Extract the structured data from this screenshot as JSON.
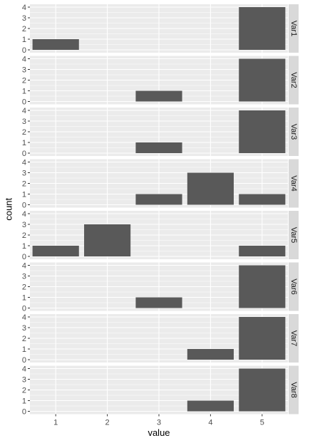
{
  "chart_data": {
    "type": "bar",
    "layout": "faceted-rows",
    "xlabel": "value",
    "ylabel": "count",
    "x_ticks": [
      "1",
      "2",
      "3",
      "4",
      "5"
    ],
    "y_ticks": [
      "0",
      "1",
      "2",
      "3",
      "4"
    ],
    "xlim": [
      0.5,
      5.5
    ],
    "ylim": [
      0,
      4
    ],
    "grid": true,
    "facet_strip_position": "right",
    "colors": {
      "bar": "#595959",
      "panel_background": "#ebebeb",
      "gridline": "#ffffff",
      "strip_background": "#d9d9d9"
    },
    "facets": [
      {
        "label": "Var1",
        "bars": [
          {
            "x": 1,
            "count": 1
          },
          {
            "x": 5,
            "count": 4
          }
        ]
      },
      {
        "label": "Var2",
        "bars": [
          {
            "x": 3,
            "count": 1
          },
          {
            "x": 5,
            "count": 4
          }
        ]
      },
      {
        "label": "Var3",
        "bars": [
          {
            "x": 3,
            "count": 1
          },
          {
            "x": 5,
            "count": 4
          }
        ]
      },
      {
        "label": "Var4",
        "bars": [
          {
            "x": 3,
            "count": 1
          },
          {
            "x": 4,
            "count": 3
          },
          {
            "x": 5,
            "count": 1
          }
        ]
      },
      {
        "label": "Var5",
        "bars": [
          {
            "x": 1,
            "count": 1
          },
          {
            "x": 2,
            "count": 3
          },
          {
            "x": 5,
            "count": 1
          }
        ]
      },
      {
        "label": "Var6",
        "bars": [
          {
            "x": 3,
            "count": 1
          },
          {
            "x": 5,
            "count": 4
          }
        ]
      },
      {
        "label": "Var7",
        "bars": [
          {
            "x": 4,
            "count": 1
          },
          {
            "x": 5,
            "count": 4
          }
        ]
      },
      {
        "label": "Var8",
        "bars": [
          {
            "x": 4,
            "count": 1
          },
          {
            "x": 5,
            "count": 4
          }
        ]
      }
    ]
  }
}
